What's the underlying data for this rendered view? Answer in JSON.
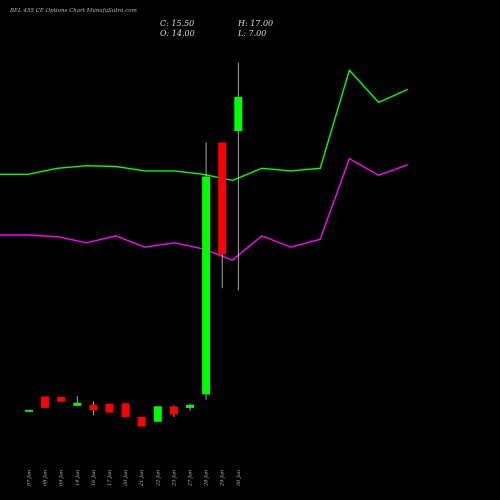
{
  "header": {
    "title": "BEL 455 CE Options  Chart MunafaSutra.com",
    "close_label": "C: 15.50",
    "open_label": "O: 14.00",
    "high_label": "H: 17.00",
    "low_label": "L: 7.00"
  },
  "chart_data": {
    "type": "candlestick",
    "categories": [
      "07 Jan",
      "08 Jan",
      "09 Jan",
      "14 Jan",
      "16 Jan",
      "17 Jan",
      "20 Jan",
      "21 Jan",
      "22 Jan",
      "23 Jan",
      "27 Jan",
      "28 Jan",
      "29 Jan",
      "30 Jan"
    ],
    "candles": [
      {
        "open": 1.68,
        "close": 1.76,
        "high": 1.76,
        "low": 1.68
      },
      {
        "open": 2.35,
        "close": 1.85,
        "high": 2.35,
        "low": 1.85
      },
      {
        "open": 2.33,
        "close": 2.12,
        "high": 2.33,
        "low": 2.12
      },
      {
        "open": 1.94,
        "close": 2.07,
        "high": 2.37,
        "low": 1.94
      },
      {
        "open": 1.98,
        "close": 1.74,
        "high": 2.13,
        "low": 1.53
      },
      {
        "open": 2.03,
        "close": 1.64,
        "high": 2.03,
        "low": 1.64
      },
      {
        "open": 2.05,
        "close": 1.45,
        "high": 2.05,
        "low": 1.45
      },
      {
        "open": 1.45,
        "close": 1.03,
        "high": 1.45,
        "low": 1.03
      },
      {
        "open": 1.24,
        "close": 1.92,
        "high": 1.92,
        "low": 1.24
      },
      {
        "open": 1.91,
        "close": 1.56,
        "high": 1.96,
        "low": 1.45
      },
      {
        "open": 1.85,
        "close": 1.98,
        "high": 2.04,
        "low": 1.73
      },
      {
        "open": 2.44,
        "close": 12.0,
        "high": 13.5,
        "low": 2.2
      },
      {
        "open": 13.5,
        "close": 8.6,
        "high": 13.5,
        "low": 7.1
      },
      {
        "open": 14.0,
        "close": 15.5,
        "high": 17.0,
        "low": 7.0
      }
    ],
    "bands": [
      {
        "name": "upper",
        "color": "#00ff00",
        "values": [
          28.5,
          28.5,
          29.2,
          29.5,
          29.4,
          28.9,
          28.9,
          28.5,
          27.8,
          29.2,
          28.9,
          29.2,
          40.5,
          36.8
        ]
      },
      {
        "name": "lower",
        "color": "#ff00ff",
        "values": [
          21.5,
          21.5,
          21.3,
          20.6,
          21.4,
          20.1,
          20.6,
          19.9,
          18.6,
          21.4,
          20.1,
          21.0,
          30.3,
          28.4,
          29.6
        ]
      }
    ],
    "band_extra": {
      "upper_last": 38.3
    },
    "colors": {
      "up": "#00ff00",
      "down": "#ff0000",
      "background": "#000000"
    }
  }
}
